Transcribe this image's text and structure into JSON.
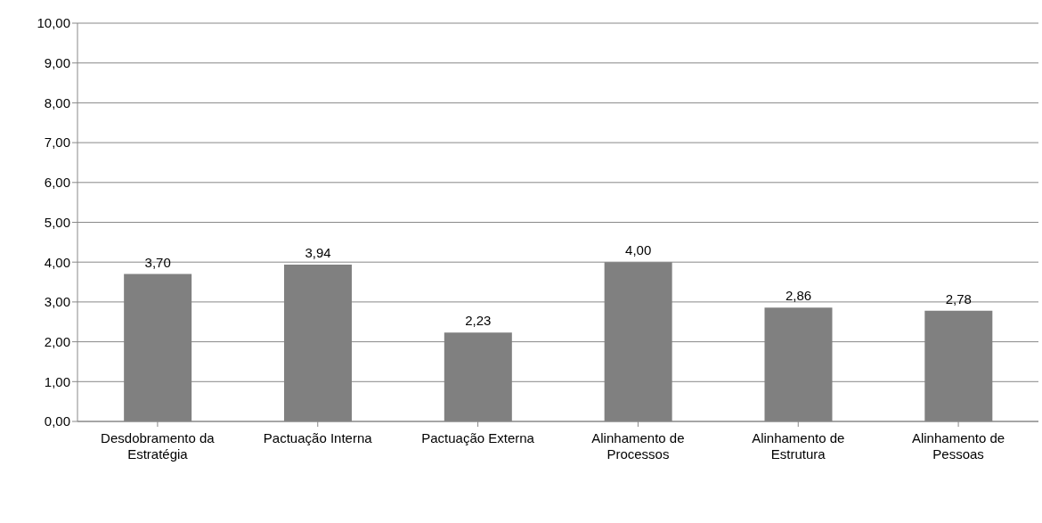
{
  "chart_data": {
    "type": "bar",
    "categories": [
      "Desdobramento da Estratégia",
      "Pactuação Interna",
      "Pactuação Externa",
      "Alinhamento de Processos",
      "Alinhamento de Estrutura",
      "Alinhamento de Pessoas"
    ],
    "values": [
      3.7,
      3.94,
      2.23,
      4.0,
      2.86,
      2.78
    ],
    "value_labels": [
      "3,70",
      "3,94",
      "2,23",
      "4,00",
      "2,86",
      "2,78"
    ],
    "color": "#808080",
    "ylim": [
      0,
      10
    ],
    "yticks": [
      {
        "value": 0,
        "label": "0,00"
      },
      {
        "value": 1,
        "label": "1,00"
      },
      {
        "value": 2,
        "label": "2,00"
      },
      {
        "value": 3,
        "label": "3,00"
      },
      {
        "value": 4,
        "label": "4,00"
      },
      {
        "value": 5,
        "label": "5,00"
      },
      {
        "value": 6,
        "label": "6,00"
      },
      {
        "value": 7,
        "label": "7,00"
      },
      {
        "value": 8,
        "label": "8,00"
      },
      {
        "value": 9,
        "label": "9,00"
      },
      {
        "value": 10,
        "label": "10,00"
      }
    ],
    "grid": "y"
  }
}
